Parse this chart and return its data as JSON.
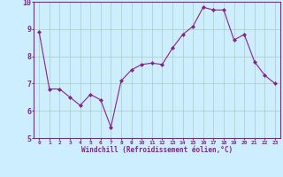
{
  "x": [
    0,
    1,
    2,
    3,
    4,
    5,
    6,
    7,
    8,
    9,
    10,
    11,
    12,
    13,
    14,
    15,
    16,
    17,
    18,
    19,
    20,
    21,
    22,
    23
  ],
  "y": [
    8.9,
    6.8,
    6.8,
    6.5,
    6.2,
    6.6,
    6.4,
    5.4,
    7.1,
    7.5,
    7.7,
    7.75,
    7.7,
    8.3,
    8.8,
    9.1,
    9.8,
    9.7,
    9.7,
    8.6,
    8.8,
    7.8,
    7.3,
    7.0
  ],
  "line_color": "#882288",
  "marker": "D",
  "marker_size": 2,
  "bg_color": "#cceeff",
  "grid_color": "#aaccbb",
  "xlabel": "Windchill (Refroidissement éolien,°C)",
  "xlabel_color": "#882288",
  "tick_color": "#882288",
  "spine_color": "#882288",
  "ylim": [
    5,
    10
  ],
  "xlim": [
    -0.5,
    23.5
  ],
  "yticks": [
    5,
    6,
    7,
    8,
    9,
    10
  ],
  "xticks": [
    0,
    1,
    2,
    3,
    4,
    5,
    6,
    7,
    8,
    9,
    10,
    11,
    12,
    13,
    14,
    15,
    16,
    17,
    18,
    19,
    20,
    21,
    22,
    23
  ]
}
